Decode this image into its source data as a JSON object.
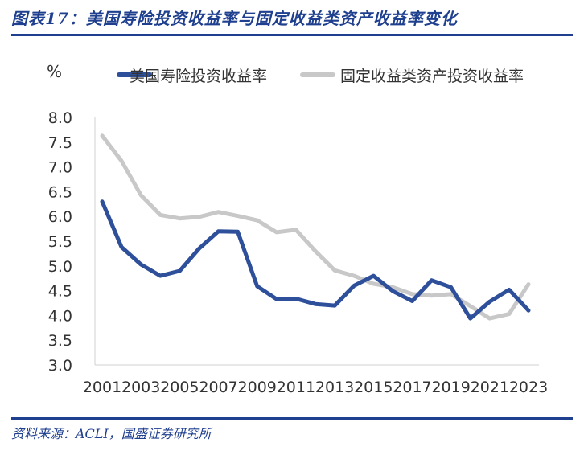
{
  "figure": {
    "title": "图表17：美国寿险投资收益率与固定收益类资产收益率变化",
    "source": "资料来源：ACLI，国盛证券研究所"
  },
  "colors": {
    "brand": "#1f3f8f",
    "series1": "#2e4f9a",
    "series2": "#c8c8c8"
  },
  "chart_data": {
    "type": "line",
    "unit_label": "%",
    "title": "",
    "xlabel": "",
    "ylabel": "%",
    "ylim": [
      3.0,
      8.0
    ],
    "ytick_step": 0.5,
    "grid": false,
    "legend_position": "top",
    "x": [
      2001,
      2002,
      2003,
      2004,
      2005,
      2006,
      2007,
      2008,
      2009,
      2010,
      2011,
      2012,
      2013,
      2014,
      2015,
      2016,
      2017,
      2018,
      2019,
      2020,
      2021,
      2022,
      2023
    ],
    "x_tick_labels": [
      "2001",
      "2003",
      "2005",
      "2007",
      "2009",
      "2011",
      "2013",
      "2015",
      "2017",
      "2019",
      "2021",
      "2023"
    ],
    "series": [
      {
        "name": "美国寿险投资收益率",
        "values": [
          6.3,
          5.38,
          5.03,
          4.8,
          4.9,
          5.35,
          5.7,
          5.69,
          4.59,
          4.33,
          4.34,
          4.23,
          4.2,
          4.6,
          4.8,
          4.49,
          4.29,
          4.71,
          4.57,
          3.94,
          4.28,
          4.52,
          4.1
        ]
      },
      {
        "name": "固定收益类资产投资收益率",
        "values": [
          7.63,
          7.12,
          6.43,
          6.03,
          5.96,
          5.99,
          6.09,
          6.01,
          5.92,
          5.68,
          5.73,
          5.3,
          4.91,
          4.8,
          4.64,
          4.57,
          4.43,
          4.4,
          4.43,
          4.19,
          3.94,
          4.03,
          4.63
        ]
      }
    ]
  }
}
